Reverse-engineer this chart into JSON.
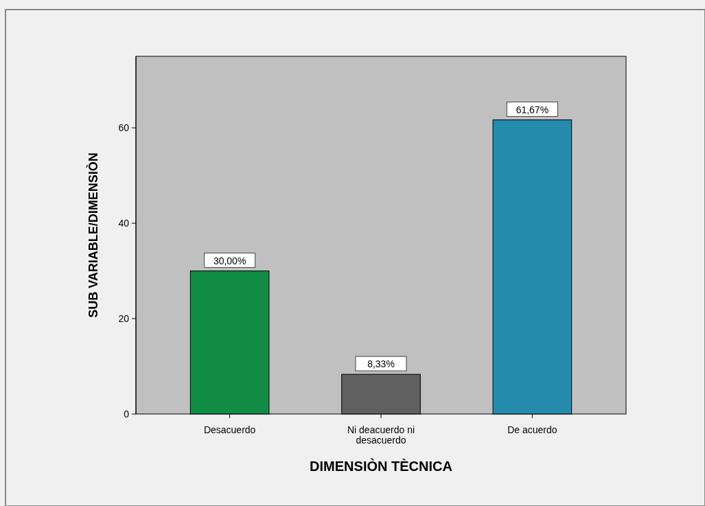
{
  "chart_data": {
    "type": "bar",
    "xlabel": "DIMENSIÒN TÈCNICA",
    "ylabel": "SUB VARIABLE/DIMENSIÒN",
    "categories": [
      "Desacuerdo",
      "Ni deacuerdo ni desacuerdo",
      "De acuerdo"
    ],
    "values": [
      30,
      8.33,
      61.67
    ],
    "colors": [
      "#118c45",
      "#606060",
      "#258bad"
    ],
    "value_labels": [
      "30,00%",
      "8,33%",
      "61,67%"
    ],
    "ylim": [
      0,
      75
    ],
    "yticks": [
      0,
      20,
      40,
      60
    ],
    "grid": false
  }
}
